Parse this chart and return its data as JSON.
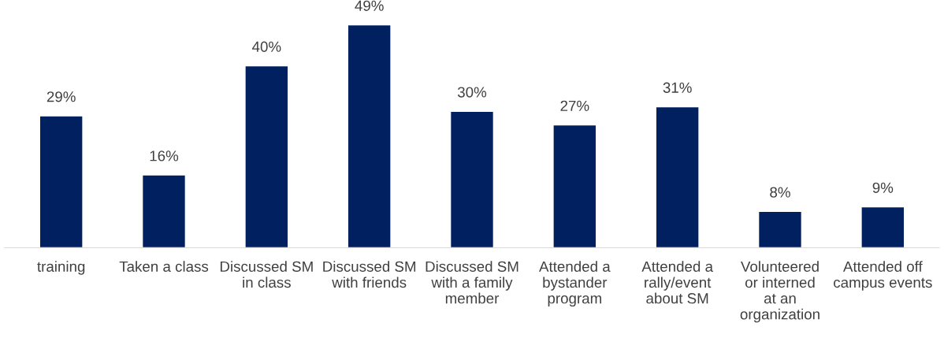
{
  "chart_data": {
    "type": "bar",
    "categories": [
      "training",
      "Taken a class",
      "Discussed SM in class",
      "Discussed SM with friends",
      "Discussed SM with a family member",
      "Attended a bystander program",
      "Attended a rally/event about SM",
      "Volunteered or interned at an organization",
      "Attended off campus events"
    ],
    "values": [
      29,
      16,
      40,
      49,
      30,
      27,
      31,
      8,
      9
    ],
    "value_labels": [
      "29%",
      "16%",
      "40%",
      "49%",
      "30%",
      "27%",
      "31%",
      "8%",
      "9%"
    ],
    "color": "#002060",
    "grid": false,
    "legend": false
  }
}
